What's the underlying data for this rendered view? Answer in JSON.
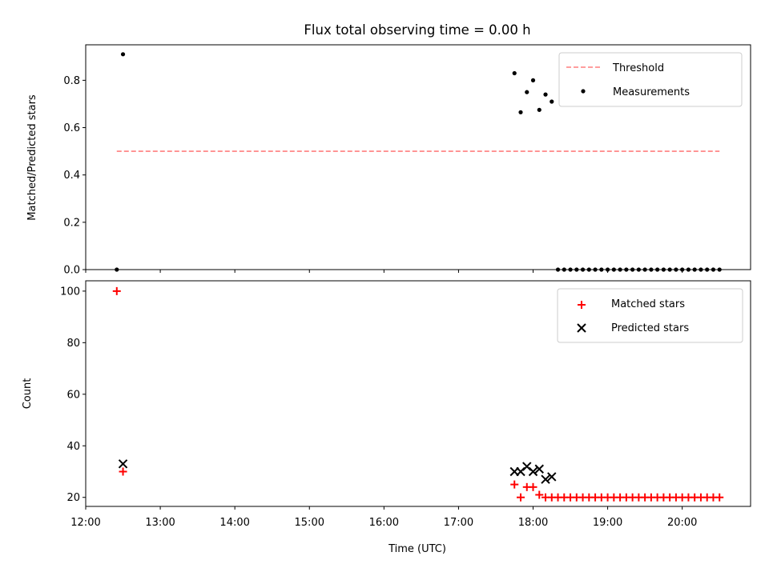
{
  "chart_data": [
    {
      "type": "scatter",
      "title": "Flux total observing time = 0.00 h",
      "ylabel": "Matched/Predicted stars",
      "xlim": [
        "12:00",
        "20:55"
      ],
      "ylim": [
        0,
        0.95
      ],
      "yticks": [
        "0.0",
        "0.2",
        "0.4",
        "0.6",
        "0.8"
      ],
      "legend_position": "top-right",
      "grid": false,
      "threshold": {
        "name": "Threshold",
        "value": 0.5,
        "x_start": "12:25",
        "x_end": "20:30",
        "color": "#ff7f7f",
        "style": "dashed"
      },
      "series": [
        {
          "name": "Measurements",
          "color": "#000000",
          "marker": "dot",
          "x": [
            "12:25",
            "12:30",
            "17:45",
            "17:50",
            "17:55",
            "18:00",
            "18:05",
            "18:10",
            "18:15",
            "18:20",
            "18:25",
            "18:30",
            "18:35",
            "18:40",
            "18:45",
            "18:50",
            "18:55",
            "19:00",
            "19:05",
            "19:10",
            "19:15",
            "19:20",
            "19:25",
            "19:30",
            "19:35",
            "19:40",
            "19:45",
            "19:50",
            "19:55",
            "20:00",
            "20:05",
            "20:10",
            "20:15",
            "20:20",
            "20:25",
            "20:30"
          ],
          "y": [
            0.0,
            0.91,
            0.83,
            0.665,
            0.75,
            0.8,
            0.675,
            0.74,
            0.71,
            0.0,
            0.0,
            0.0,
            0.0,
            0.0,
            0.0,
            0.0,
            0.0,
            0.0,
            0.0,
            0.0,
            0.0,
            0.0,
            0.0,
            0.0,
            0.0,
            0.0,
            0.0,
            0.0,
            0.0,
            0.0,
            0.0,
            0.0,
            0.0,
            0.0,
            0.0,
            0.0
          ]
        }
      ]
    },
    {
      "type": "scatter",
      "xlabel": "Time (UTC)",
      "ylabel": "Count",
      "xlim": [
        "12:00",
        "20:55"
      ],
      "ylim": [
        16.5,
        104
      ],
      "xticks": [
        "12:00",
        "13:00",
        "14:00",
        "15:00",
        "16:00",
        "17:00",
        "18:00",
        "19:00",
        "20:00"
      ],
      "yticks": [
        "20",
        "40",
        "60",
        "80",
        "100"
      ],
      "legend_position": "top-right",
      "grid": false,
      "series": [
        {
          "name": "Matched stars",
          "color": "#ff0000",
          "marker": "plus",
          "x": [
            "12:25",
            "12:30",
            "17:45",
            "17:50",
            "17:55",
            "18:00",
            "18:05",
            "18:10",
            "18:15",
            "18:20",
            "18:25",
            "18:30",
            "18:35",
            "18:40",
            "18:45",
            "18:50",
            "18:55",
            "19:00",
            "19:05",
            "19:10",
            "19:15",
            "19:20",
            "19:25",
            "19:30",
            "19:35",
            "19:40",
            "19:45",
            "19:50",
            "19:55",
            "20:00",
            "20:05",
            "20:10",
            "20:15",
            "20:20",
            "20:25",
            "20:30"
          ],
          "y": [
            100,
            30,
            25,
            20,
            24,
            24,
            21,
            20,
            20,
            20,
            20,
            20,
            20,
            20,
            20,
            20,
            20,
            20,
            20,
            20,
            20,
            20,
            20,
            20,
            20,
            20,
            20,
            20,
            20,
            20,
            20,
            20,
            20,
            20,
            20,
            20
          ]
        },
        {
          "name": "Predicted stars",
          "color": "#000000",
          "marker": "x",
          "x": [
            "12:30",
            "17:45",
            "17:50",
            "17:55",
            "18:00",
            "18:05",
            "18:10",
            "18:15"
          ],
          "y": [
            33,
            30,
            30,
            32,
            30,
            31,
            27,
            28
          ]
        }
      ]
    }
  ]
}
